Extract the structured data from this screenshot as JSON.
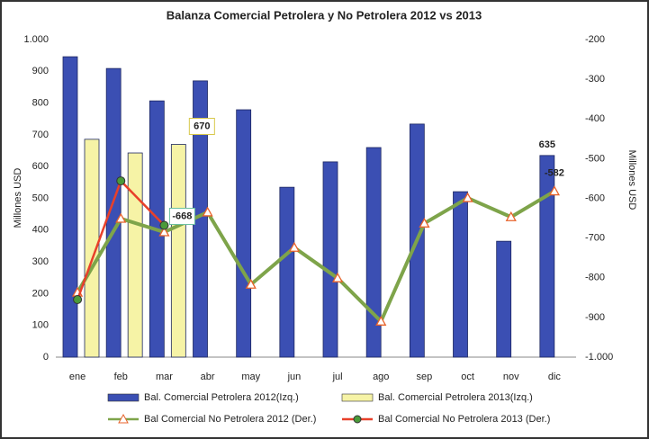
{
  "chart_data": {
    "type": "bar-line",
    "title": "Balanza Comercial Petrolera y No Petrolera 2012 vs 2013",
    "y_label": "Millones USD",
    "y2_label": "Millones USD",
    "categories": [
      "ene",
      "feb",
      "mar",
      "abr",
      "may",
      "jun",
      "jul",
      "ago",
      "sep",
      "oct",
      "nov",
      "dic"
    ],
    "ylim": [
      0,
      1000
    ],
    "yticks": [
      0,
      100,
      200,
      300,
      400,
      500,
      600,
      700,
      800,
      900,
      {
        "value": 1000,
        "label": "1.000"
      }
    ],
    "y2lim": [
      -1000,
      -200
    ],
    "y2ticks": [
      {
        "value": -1000,
        "label": "-1.000"
      },
      -900,
      -800,
      -700,
      -600,
      -500,
      -400,
      -300,
      -200
    ],
    "grid": false,
    "legend": "bottom",
    "series": [
      {
        "name": "Bal. Comercial Petrolera 2012(Izq.)",
        "kind": "bar",
        "axis": "y",
        "color": "#3b4fb3",
        "values": [
          946,
          909,
          807,
          870,
          779,
          535,
          615,
          660,
          734,
          521,
          365,
          635
        ],
        "value_labels": [
          null,
          null,
          null,
          null,
          null,
          null,
          null,
          null,
          null,
          null,
          null,
          "635"
        ],
        "label_color": "#2e75b6"
      },
      {
        "name": "Bal. Comercial Petrolera 2013(Izq.)",
        "kind": "bar",
        "axis": "y",
        "color": "#f6f3a6",
        "values": [
          686,
          643,
          670,
          null,
          null,
          null,
          null,
          null,
          null,
          null,
          null,
          null
        ],
        "value_labels": [
          null,
          null,
          "670",
          null,
          null,
          null,
          null,
          null,
          null,
          null,
          null,
          null
        ],
        "label_color": "#000000"
      },
      {
        "name": "Bal Comercial No Petrolera 2012 (Der.)",
        "kind": "line",
        "axis": "y2",
        "color": "#7ea44a",
        "marker_color": "#e8622a",
        "values": [
          -837,
          -651,
          -685,
          -635,
          -817,
          -724,
          -801,
          -910,
          -663,
          -599,
          -647,
          -582
        ],
        "value_labels": [
          null,
          null,
          null,
          null,
          null,
          null,
          null,
          null,
          null,
          null,
          null,
          "-582"
        ],
        "label_color": "#e03020"
      },
      {
        "name": "Bal Comercial No Petrolera 2013 (Der.)",
        "kind": "line",
        "axis": "y2",
        "color": "#e8402a",
        "marker_color": "#4a9a3a",
        "values": [
          -855,
          -556,
          -668,
          null,
          null,
          null,
          null,
          null,
          null,
          null,
          null,
          null
        ],
        "value_labels": [
          null,
          null,
          "-668",
          null,
          null,
          null,
          null,
          null,
          null,
          null,
          null,
          null
        ],
        "label_color": "#000000"
      }
    ]
  }
}
